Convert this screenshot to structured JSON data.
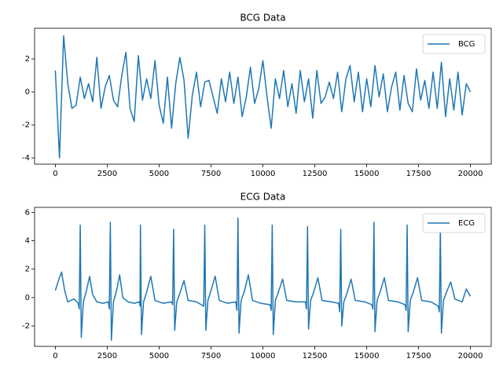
{
  "chart_data": [
    {
      "type": "line",
      "title": "BCG Data",
      "x": [
        0,
        200,
        400,
        600,
        800,
        1000,
        1200,
        1400,
        1600,
        1800,
        2000,
        2200,
        2400,
        2600,
        2800,
        3000,
        3200,
        3400,
        3600,
        3800,
        4000,
        4200,
        4400,
        4600,
        4800,
        5000,
        5200,
        5400,
        5600,
        5800,
        6000,
        6200,
        6400,
        6600,
        6800,
        7000,
        7200,
        7400,
        7600,
        7800,
        8000,
        8200,
        8400,
        8600,
        8800,
        9000,
        9200,
        9400,
        9600,
        9800,
        10000,
        10200,
        10400,
        10600,
        10800,
        11000,
        11200,
        11400,
        11600,
        11800,
        12000,
        12200,
        12400,
        12600,
        12800,
        13000,
        13200,
        13400,
        13600,
        13800,
        14000,
        14200,
        14400,
        14600,
        14800,
        15000,
        15200,
        15400,
        15600,
        15800,
        16000,
        16200,
        16400,
        16600,
        16800,
        17000,
        17200,
        17400,
        17600,
        17800,
        18000,
        18200,
        18400,
        18600,
        18800,
        19000,
        19200,
        19400,
        19600,
        19800,
        20000
      ],
      "series": [
        {
          "name": "BCG",
          "color": "#1f77b4",
          "values": [
            1.3,
            -4.0,
            3.4,
            0.5,
            -1.0,
            -0.8,
            0.9,
            -0.4,
            0.5,
            -0.6,
            2.1,
            -1.0,
            0.3,
            1.0,
            -0.5,
            -0.9,
            1.0,
            2.4,
            -1.0,
            -1.8,
            2.2,
            -0.5,
            0.8,
            -0.4,
            1.9,
            -0.8,
            -1.9,
            0.9,
            -2.2,
            0.5,
            2.1,
            0.7,
            -2.8,
            -0.2,
            1.2,
            -0.9,
            0.6,
            0.7,
            -0.3,
            -1.3,
            0.8,
            -0.6,
            1.2,
            -0.7,
            0.9,
            -1.5,
            -0.3,
            1.5,
            -0.7,
            0.2,
            1.9,
            -0.3,
            -2.2,
            0.8,
            -0.4,
            1.3,
            -0.9,
            0.5,
            -1.3,
            1.3,
            -0.6,
            0.8,
            -1.6,
            1.3,
            -0.7,
            -0.3,
            0.6,
            -0.4,
            1.2,
            -1.2,
            0.8,
            1.6,
            -0.6,
            1.2,
            -1.2,
            0.8,
            -0.9,
            1.6,
            -0.3,
            1.1,
            -1.2,
            0.3,
            1.2,
            -1.1,
            1.0,
            -0.7,
            -1.2,
            1.4,
            -0.5,
            0.7,
            -1.0,
            1.2,
            -1.0,
            1.8,
            -1.5,
            0.8,
            -1.1,
            1.2,
            -1.4,
            0.5,
            0.0
          ]
        }
      ],
      "xlim": [
        -1000,
        21000
      ],
      "xticks": [
        0,
        2500,
        5000,
        7500,
        10000,
        12500,
        15000,
        17500,
        20000
      ],
      "ylim": [
        -4.38,
        3.86
      ],
      "yticks": [
        -4,
        -2,
        0,
        2
      ],
      "legend": "upper right"
    },
    {
      "type": "line",
      "title": "ECG Data",
      "x": [
        0,
        150,
        300,
        450,
        600,
        900,
        1100,
        1150,
        1200,
        1250,
        1350,
        1500,
        1650,
        1800,
        2000,
        2300,
        2550,
        2600,
        2650,
        2700,
        2800,
        2950,
        3100,
        3250,
        3500,
        3800,
        4050,
        4080,
        4100,
        4150,
        4250,
        4400,
        4600,
        4800,
        5200,
        5600,
        5650,
        5700,
        5750,
        5850,
        6000,
        6200,
        6400,
        6800,
        7150,
        7200,
        7250,
        7350,
        7500,
        7700,
        7900,
        8300,
        8700,
        8750,
        8800,
        8850,
        8950,
        9100,
        9300,
        9500,
        9900,
        10350,
        10400,
        10450,
        10500,
        10600,
        10750,
        10950,
        11150,
        11600,
        12050,
        12100,
        12150,
        12200,
        12300,
        12450,
        12650,
        12850,
        13300,
        13650,
        13700,
        13750,
        13800,
        13900,
        14050,
        14250,
        14450,
        14900,
        15250,
        15300,
        15350,
        15400,
        15500,
        15650,
        15850,
        16050,
        16500,
        16850,
        16900,
        16950,
        17000,
        17100,
        17250,
        17450,
        17650,
        18100,
        18450,
        18500,
        18550,
        18600,
        18700,
        18850,
        19050,
        19250,
        19600,
        19800,
        20000
      ],
      "series": [
        {
          "name": "ECG",
          "color": "#1f77b4",
          "values": [
            0.5,
            1.2,
            1.8,
            0.5,
            -0.3,
            -0.1,
            -0.4,
            -0.8,
            5.1,
            -2.8,
            -0.3,
            0.5,
            1.5,
            0.2,
            -0.3,
            -0.4,
            -0.3,
            -0.8,
            5.3,
            -3.0,
            -0.3,
            0.5,
            1.6,
            0.0,
            -0.3,
            -0.4,
            -0.3,
            -0.6,
            5.1,
            -2.6,
            -0.3,
            0.4,
            1.5,
            -0.2,
            -0.4,
            -0.3,
            -0.5,
            4.8,
            -2.3,
            -0.3,
            0.3,
            1.2,
            -0.2,
            -0.3,
            -0.6,
            5.1,
            -2.3,
            -0.2,
            0.5,
            1.5,
            -0.2,
            -0.4,
            -0.3,
            -0.9,
            5.6,
            -2.5,
            -0.2,
            0.4,
            1.6,
            -0.2,
            -0.4,
            -0.5,
            -0.9,
            5.1,
            -2.6,
            -0.2,
            0.4,
            1.3,
            -0.2,
            -0.3,
            -0.3,
            -0.8,
            5.0,
            -2.2,
            -0.2,
            0.4,
            1.4,
            -0.2,
            -0.3,
            -0.4,
            -1.0,
            4.8,
            -2.0,
            -0.3,
            0.3,
            1.3,
            -0.2,
            -0.3,
            -0.5,
            -0.8,
            5.3,
            -2.4,
            -0.2,
            0.4,
            1.4,
            -0.2,
            -0.3,
            -0.5,
            -0.9,
            5.1,
            -2.4,
            -0.2,
            0.4,
            1.4,
            -0.2,
            -0.3,
            -0.6,
            -1.0,
            4.9,
            -2.5,
            -0.2,
            0.4,
            1.1,
            -0.1,
            -0.3,
            0.6,
            0.1
          ]
        }
      ],
      "xlim": [
        -1000,
        21000
      ],
      "xticks": [
        0,
        2500,
        5000,
        7500,
        10000,
        12500,
        15000,
        17500,
        20000
      ],
      "ylim": [
        -3.43,
        6.35
      ],
      "yticks": [
        -2,
        0,
        2,
        4,
        6
      ],
      "legend": "upper right"
    }
  ]
}
